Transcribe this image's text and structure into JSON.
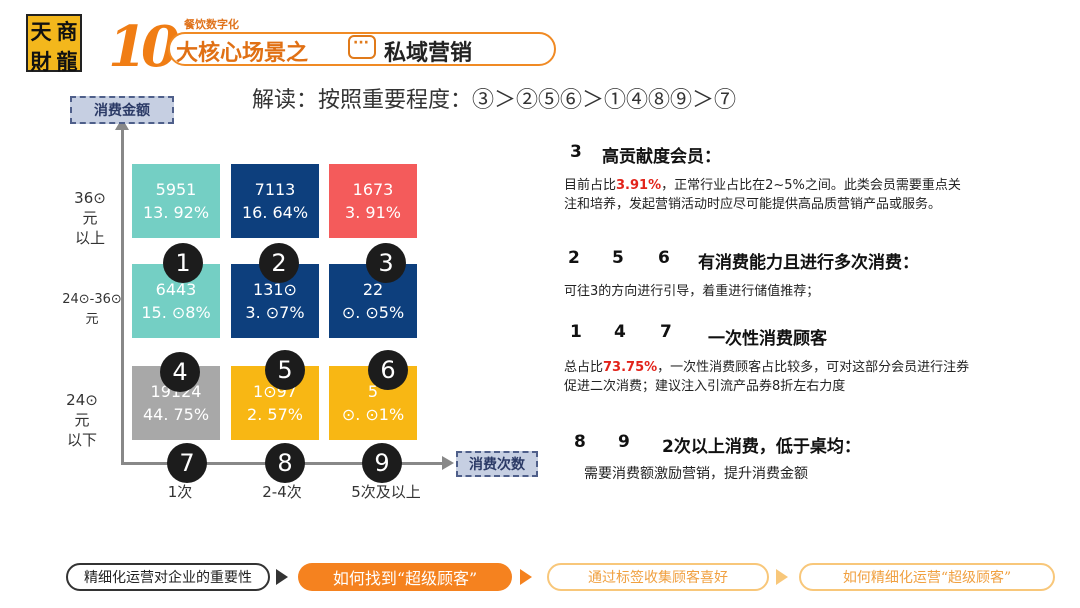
{
  "logo": {
    "chars": [
      "天",
      "商",
      "財",
      "龍"
    ]
  },
  "header": {
    "number": "10",
    "small_label": "餐饮数字化",
    "main_title": "大核心场景之",
    "sub_title": "私域营销"
  },
  "interpretation": "解读：按照重要程度：③＞②⑤⑥＞①④⑧⑨＞⑦",
  "matrix": {
    "y_axis_label": "消费金额",
    "x_axis_label": "消费次数",
    "y_ticks": [
      "36⊙\n元\n以上",
      "24⊙-36⊙\n元",
      "24⊙\n元\n以下"
    ],
    "x_ticks": [
      "1次",
      "2-4次",
      "5次及以上"
    ],
    "cells": [
      {
        "value": "5951",
        "percent": "13. 92%",
        "color": "#74cfc4"
      },
      {
        "value": "7113",
        "percent": "16. 64%",
        "color": "#0d3f7d"
      },
      {
        "value": "1673",
        "percent": "3. 91%",
        "color": "#f45b5b"
      },
      {
        "value": "6443",
        "percent": "15. ⊙8%",
        "color": "#74cfc4"
      },
      {
        "value": "131⊙",
        "percent": "3. ⊙7%",
        "color": "#0d3f7d"
      },
      {
        "value": "22",
        "percent": "⊙. ⊙5%",
        "color": "#0d3f7d"
      },
      {
        "value": "19124",
        "percent": "44. 75%",
        "color": "#a8a8a8"
      },
      {
        "value": "1⊙97",
        "percent": "2. 57%",
        "color": "#f8b714"
      },
      {
        "value": "5",
        "percent": "⊙. ⊙1%",
        "color": "#f8b714"
      }
    ],
    "circles": [
      "1",
      "2",
      "3",
      "4",
      "5",
      "6",
      "7",
      "8",
      "9"
    ]
  },
  "notes": {
    "s1": {
      "num": "3",
      "title": "高贡献度会员：",
      "line1_pre": "目前占比",
      "line1_red": "3.91%",
      "line1_post": "，正常行业占比在2~5%之间。此类会员需要重点关",
      "line2": "注和培养，发起营销活动时应尽可能提供高品质营销产品或服务。"
    },
    "s2": {
      "nums": [
        "2",
        "5",
        "6"
      ],
      "title": "有消费能力且进行多次消费：",
      "line1": "可往3的方向进行引导，着重进行储值推荐；"
    },
    "s3": {
      "nums": [
        "1",
        "4",
        "7"
      ],
      "title": "一次性消费顾客",
      "line1_pre": "总占比",
      "line1_red": "73.75%",
      "line1_post": "，一次性消费顾客占比较多，可对这部分会员进行注券",
      "line2": "促进二次消费；建议注入引流产品券8折左右力度"
    },
    "s4": {
      "nums": [
        "8",
        "9"
      ],
      "title": "2次以上消费，低于桌均：",
      "line1": "需要消费额激励营销，提升消费金额"
    }
  },
  "nav": {
    "items": [
      "精细化运营对企业的重要性",
      "如何找到“超级顾客”",
      "通过标签收集顾客喜好",
      "如何精细化运营“超级顾客”"
    ],
    "active_color": "#f5821f"
  }
}
